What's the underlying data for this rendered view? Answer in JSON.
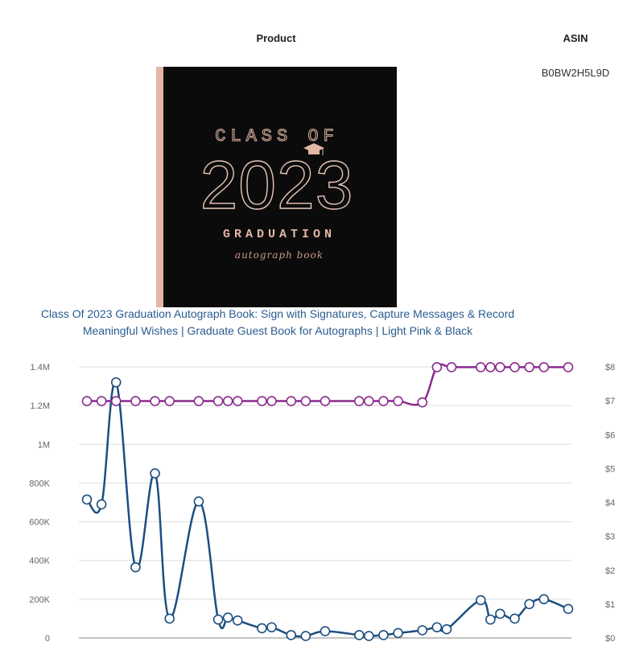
{
  "table": {
    "headers": {
      "product": "Product",
      "asin": "ASIN"
    },
    "asin_value": "B0BW2H5L9D",
    "product_title_line1": "Class Of 2023 Graduation Autograph Book: Sign with Signatures, Capture Messages & Record",
    "product_title_line2": "Meaningful Wishes | Graduate Guest Book for Autographs | Light Pink & Black"
  },
  "cover": {
    "line1": "CLASS OF",
    "year": "2023",
    "line2": "GRADUATION",
    "line3": "autograph book",
    "colors": {
      "background": "#0b0b0b",
      "accent": "#e2b7a6"
    },
    "icon": "graduation-cap-icon"
  },
  "chart_data": {
    "type": "line",
    "left_axis": {
      "ticks": [
        "0",
        "200K",
        "400K",
        "600K",
        "800K",
        "1M",
        "1.2M",
        "1.4M"
      ],
      "ylim": [
        0,
        1400000
      ]
    },
    "right_axis": {
      "ticks": [
        "$0",
        "$1",
        "$2",
        "$3",
        "$4",
        "$5",
        "$6",
        "$7",
        "$8"
      ],
      "ylim": [
        0,
        8
      ]
    },
    "grid": true,
    "series": [
      {
        "axis": "left",
        "color": "#1c4e80",
        "x": [
          0,
          3,
          6,
          10,
          14,
          17,
          23,
          27,
          29,
          31,
          36,
          38,
          42,
          45,
          49,
          56,
          58,
          61,
          64,
          69,
          72,
          74,
          81,
          83,
          85,
          88,
          91,
          94,
          99
        ],
        "values": [
          715000,
          690000,
          1320000,
          365000,
          850000,
          100000,
          705000,
          95000,
          105000,
          90000,
          50000,
          55000,
          15000,
          10000,
          35000,
          15000,
          10000,
          15000,
          25000,
          40000,
          55000,
          45000,
          195000,
          95000,
          125000,
          100000,
          175000,
          200000,
          150000
        ]
      },
      {
        "axis": "right",
        "color": "#8a2b8e",
        "x": [
          0,
          3,
          6,
          10,
          14,
          17,
          23,
          27,
          29,
          31,
          36,
          38,
          42,
          45,
          49,
          56,
          58,
          61,
          64,
          69,
          72,
          75,
          81,
          83,
          85,
          88,
          91,
          94,
          99
        ],
        "values": [
          6.99,
          6.99,
          6.99,
          6.99,
          6.99,
          6.99,
          6.99,
          6.99,
          6.99,
          6.99,
          6.99,
          6.99,
          6.99,
          6.99,
          6.99,
          6.99,
          6.99,
          6.99,
          6.99,
          6.95,
          7.99,
          7.99,
          7.99,
          7.99,
          7.99,
          7.99,
          7.99,
          7.99,
          7.99
        ]
      }
    ]
  }
}
